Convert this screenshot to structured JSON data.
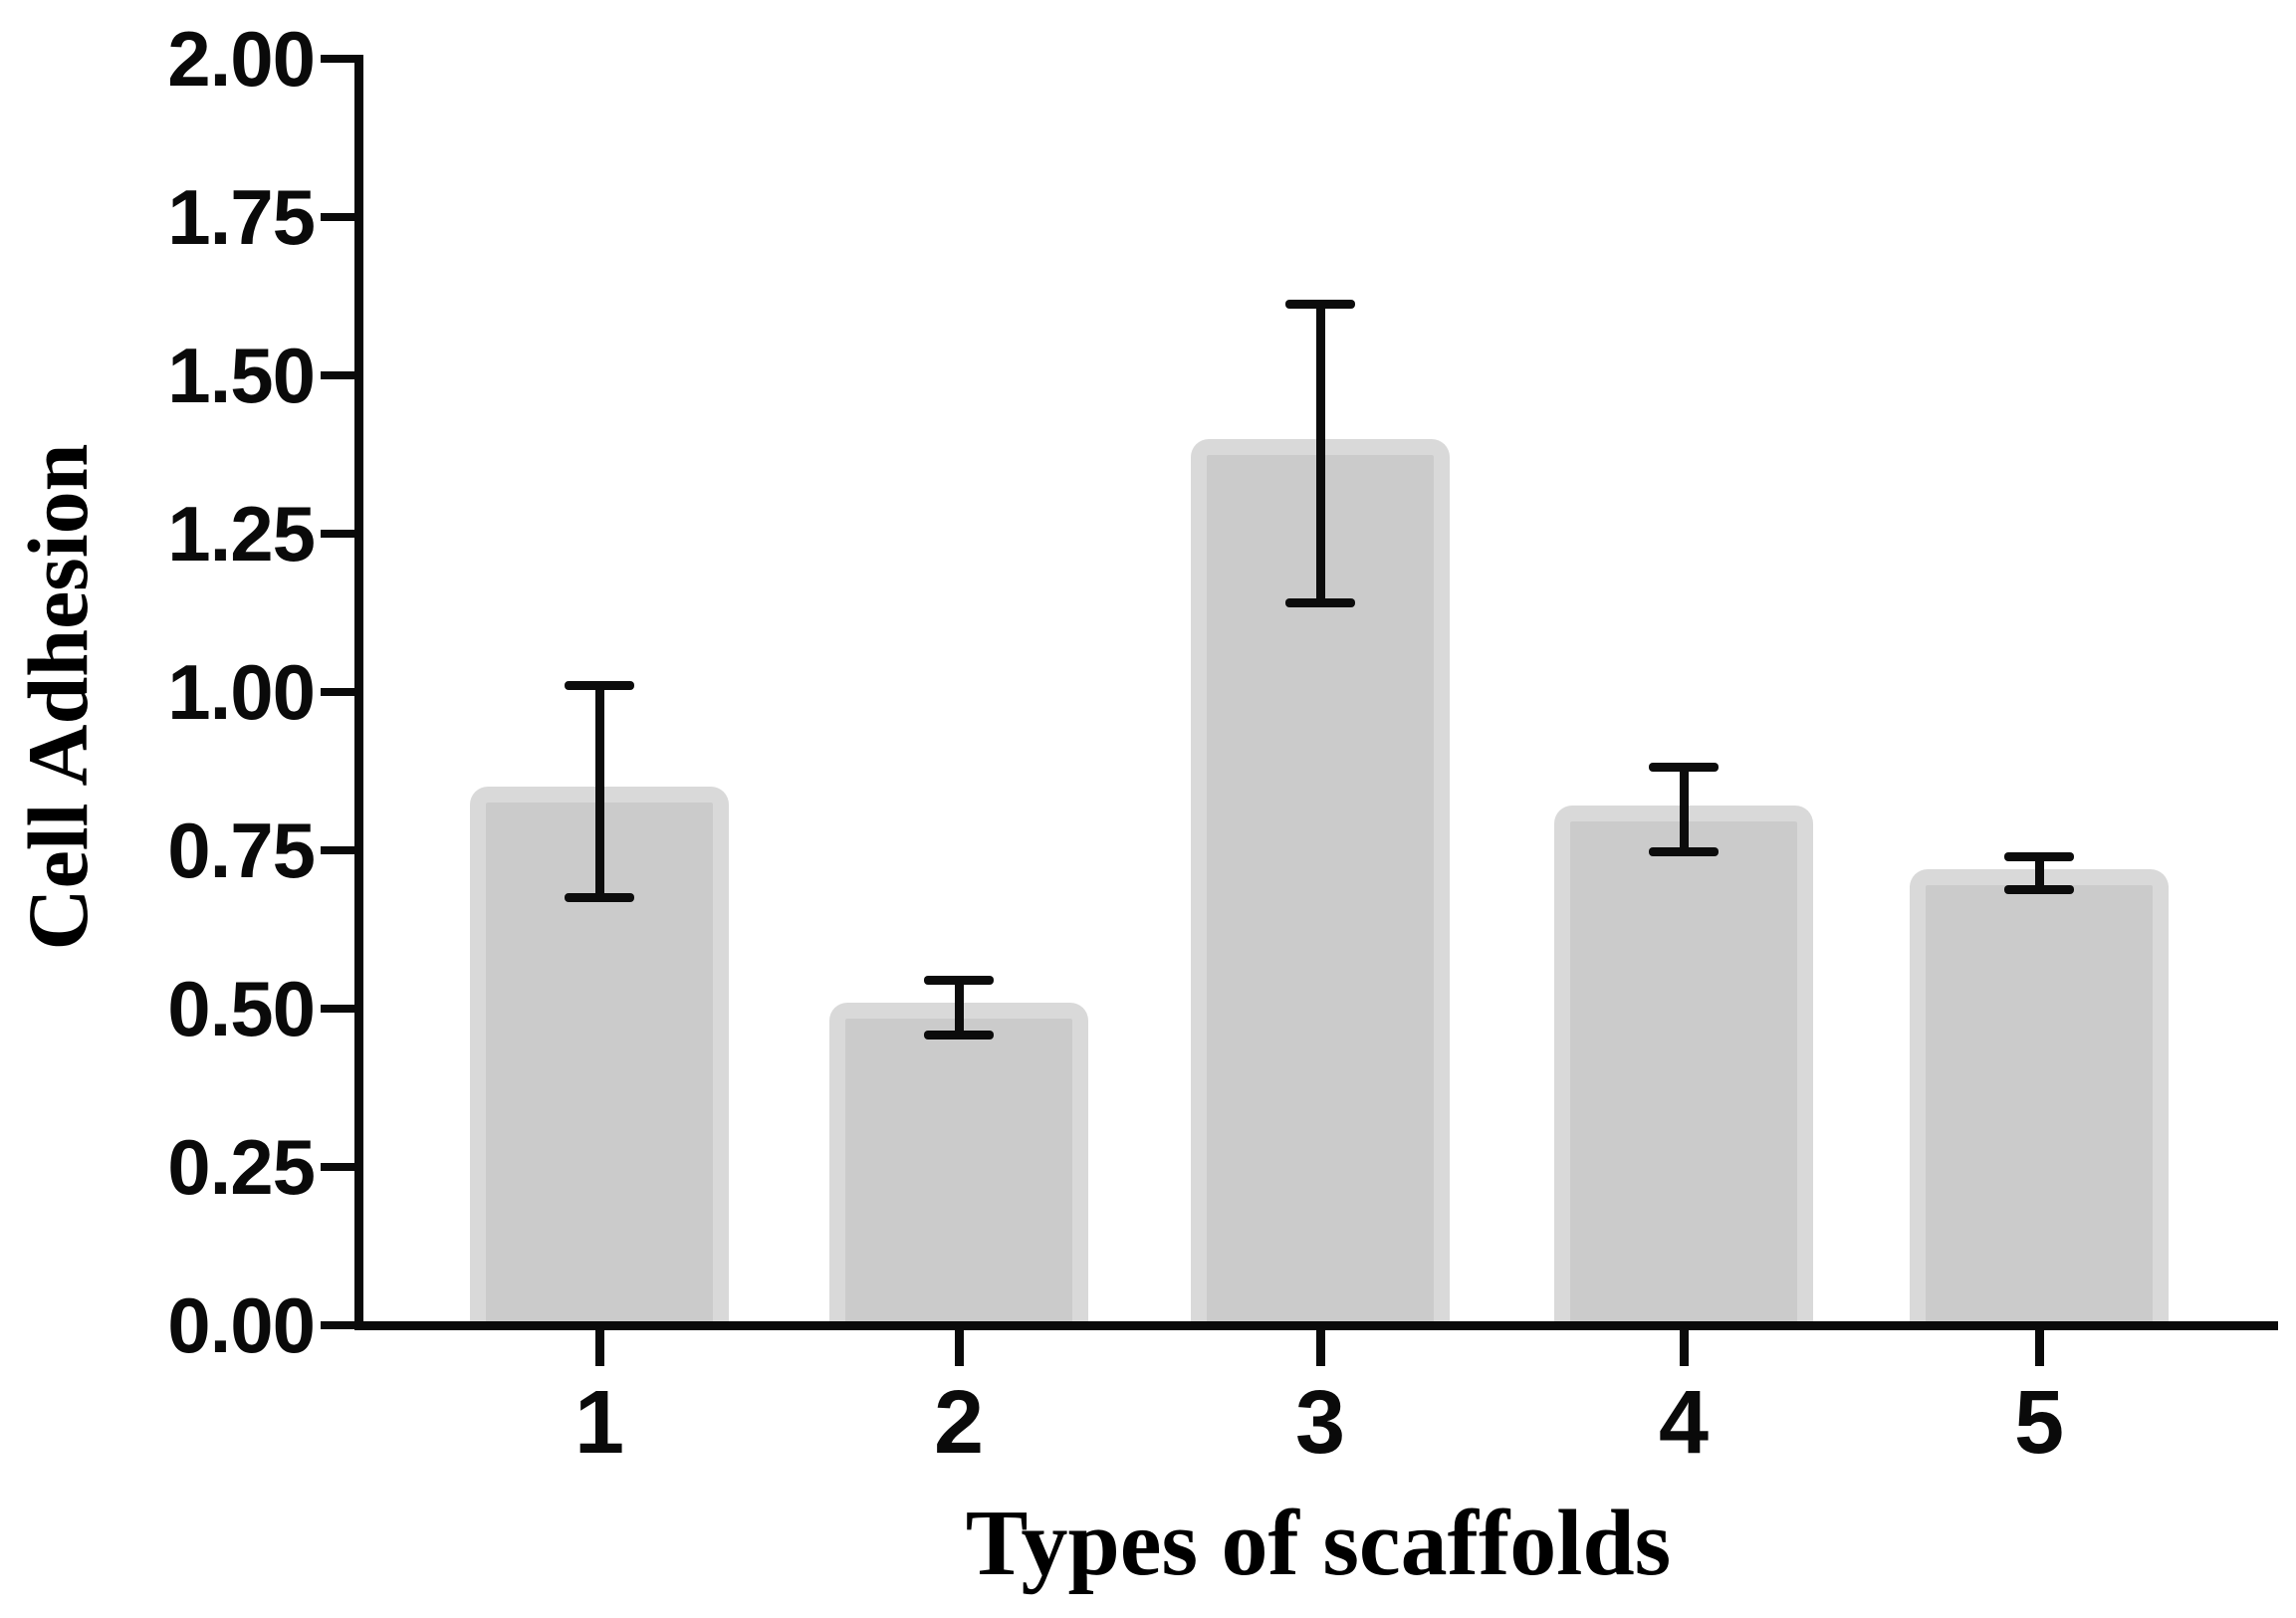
{
  "chart_data": {
    "type": "bar",
    "title": "",
    "xlabel": "Types of scaffolds",
    "ylabel": "Cell Adhesion",
    "categories": [
      "1",
      "2",
      "3",
      "4",
      "5"
    ],
    "values": [
      0.85,
      0.51,
      1.4,
      0.82,
      0.72
    ],
    "error_caps_low": [
      0.675,
      0.458,
      1.14,
      0.748,
      0.688
    ],
    "error_caps_high": [
      1.01,
      0.545,
      1.613,
      0.882,
      0.74
    ],
    "ylim": [
      0,
      2
    ],
    "ytick_step": 0.25,
    "ytick_labels": [
      "0.00",
      "0.25",
      "0.50",
      "0.75",
      "1.00",
      "1.25",
      "1.50",
      "1.75",
      "2.00"
    ],
    "grid": false,
    "legend": null,
    "bar_fill": "#cbcbcb",
    "bar_edge": "#d9d9d9",
    "axis_color": "#0a0a0a",
    "error_color": "#0c0c0c",
    "background": "#ffffff"
  }
}
